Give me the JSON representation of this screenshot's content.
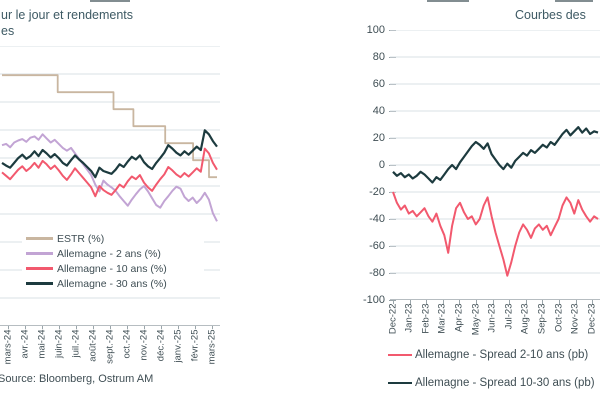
{
  "colors": {
    "tan": "#c9b6a0",
    "purple": "#c2a4d4",
    "pink": "#f2596e",
    "teal": "#1d3b3f",
    "title_text": "#3e5a64",
    "axis_text": "#3f4e54",
    "grid": "#dae0e4",
    "axis_line": "#b6bdc1"
  },
  "chart_data": [
    {
      "type": "line",
      "panel": "left",
      "title_lines": [
        "ur le jour et rendements",
        "es"
      ],
      "source": "Source: Bloomberg, Ostrum AM",
      "x_labels": [
        "mars-24",
        "avr.-24",
        "mai-24",
        "juin-24",
        "juil.-24",
        "août-24",
        "sept.-24",
        "oct.-24",
        "nov.-24",
        "déc.-24",
        "janv.-25",
        "févr.-25",
        "mars-25"
      ],
      "ylim": [
        0.22,
        4.34
      ],
      "grid_count": 11,
      "legend_position": "inside-lower-left",
      "series": [
        {
          "name": "ESTR  (%)",
          "color": "#c9b6a0",
          "step": true,
          "width": 1.8,
          "values": [
            3.91,
            3.91,
            3.91,
            3.91,
            3.91,
            3.91,
            3.91,
            3.91,
            3.91,
            3.91,
            3.91,
            3.91,
            3.91,
            3.91,
            3.66,
            3.66,
            3.66,
            3.66,
            3.66,
            3.66,
            3.66,
            3.66,
            3.66,
            3.66,
            3.66,
            3.66,
            3.66,
            3.66,
            3.41,
            3.41,
            3.41,
            3.41,
            3.41,
            3.16,
            3.16,
            3.16,
            3.16,
            3.16,
            3.16,
            3.16,
            3.16,
            2.91,
            2.91,
            2.91,
            2.91,
            2.91,
            2.91,
            2.91,
            2.66,
            2.66,
            2.66,
            2.66,
            2.41,
            2.41,
            2.41
          ]
        },
        {
          "name": "Allemagne - 2 ans  (%)",
          "color": "#c2a4d4",
          "width": 2,
          "values": [
            2.88,
            2.9,
            2.85,
            2.92,
            2.95,
            2.97,
            2.93,
            2.99,
            3.01,
            2.96,
            3.04,
            2.98,
            2.92,
            2.96,
            2.9,
            2.84,
            2.8,
            2.84,
            2.76,
            2.68,
            2.6,
            2.52,
            2.44,
            2.3,
            2.2,
            2.36,
            2.3,
            2.26,
            2.21,
            2.13,
            2.06,
            1.99,
            2.08,
            2.16,
            2.23,
            2.28,
            2.2,
            2.1,
            2.0,
            1.96,
            2.06,
            2.13,
            2.21,
            2.27,
            2.24,
            2.12,
            2.06,
            2.11,
            2.03,
            2.09,
            2.18,
            2.08,
            1.88,
            1.76
          ]
        },
        {
          "name": "Allemagne - 10 ans  (%)",
          "color": "#f2596e",
          "width": 2,
          "values": [
            2.48,
            2.43,
            2.38,
            2.45,
            2.52,
            2.57,
            2.5,
            2.55,
            2.62,
            2.55,
            2.65,
            2.6,
            2.53,
            2.58,
            2.51,
            2.43,
            2.37,
            2.45,
            2.54,
            2.47,
            2.4,
            2.33,
            2.26,
            2.13,
            2.28,
            2.22,
            2.18,
            2.15,
            2.22,
            2.3,
            2.26,
            2.35,
            2.42,
            2.38,
            2.44,
            2.33,
            2.26,
            2.21,
            2.3,
            2.38,
            2.45,
            2.56,
            2.51,
            2.45,
            2.41,
            2.47,
            2.42,
            2.48,
            2.54,
            2.49,
            2.83,
            2.76,
            2.62,
            2.52
          ]
        },
        {
          "name": "Allemagne - 30 ans  (%)",
          "color": "#1d3b3f",
          "width": 2.2,
          "values": [
            2.62,
            2.58,
            2.55,
            2.62,
            2.69,
            2.74,
            2.68,
            2.72,
            2.79,
            2.72,
            2.81,
            2.76,
            2.7,
            2.75,
            2.69,
            2.62,
            2.58,
            2.66,
            2.73,
            2.67,
            2.62,
            2.56,
            2.5,
            2.41,
            2.55,
            2.5,
            2.48,
            2.46,
            2.52,
            2.6,
            2.56,
            2.64,
            2.71,
            2.67,
            2.73,
            2.63,
            2.57,
            2.53,
            2.62,
            2.69,
            2.77,
            2.88,
            2.83,
            2.77,
            2.73,
            2.79,
            2.74,
            2.8,
            2.86,
            2.81,
            3.1,
            3.04,
            2.94,
            2.86
          ]
        }
      ]
    },
    {
      "type": "line",
      "panel": "right",
      "title": "Courbes des",
      "x_labels": [
        "Dec-22",
        "Jan-23",
        "Feb-23",
        "Mar-23",
        "Apr-23",
        "May-23",
        "Jun-23",
        "Jul-23",
        "Aug-23",
        "Sep-23",
        "Oct-23",
        "Nov-23",
        "Dec-23"
      ],
      "ylim": [
        -100,
        100
      ],
      "y_ticks": [
        100,
        80,
        60,
        40,
        20,
        0,
        -20,
        -40,
        -60,
        -80,
        -100
      ],
      "grid_count": 11,
      "legend_position": "below",
      "series": [
        {
          "name": "Allemagne - Spread 2-10 ans  (pb)",
          "color": "#f2596e",
          "width": 2,
          "values": [
            -20,
            -28,
            -33,
            -30,
            -36,
            -34,
            -38,
            -35,
            -32,
            -38,
            -42,
            -36,
            -45,
            -52,
            -65,
            -45,
            -32,
            -28,
            -35,
            -40,
            -38,
            -44,
            -40,
            -30,
            -24,
            -38,
            -50,
            -60,
            -70,
            -82,
            -72,
            -60,
            -50,
            -44,
            -48,
            -54,
            -47,
            -44,
            -48,
            -45,
            -52,
            -46,
            -40,
            -30,
            -24,
            -28,
            -36,
            -26,
            -33,
            -38,
            -42,
            -38,
            -40
          ]
        },
        {
          "name": "Allemagne - Spread 10-30 ans  (pb)",
          "color": "#1d3b3f",
          "width": 2.2,
          "values": [
            -5,
            -8,
            -6,
            -9,
            -7,
            -10,
            -8,
            -5,
            -7,
            -10,
            -13,
            -9,
            -11,
            -7,
            -3,
            0,
            -3,
            2,
            6,
            10,
            14,
            17,
            15,
            12,
            16,
            8,
            4,
            0,
            -3,
            1,
            -2,
            3,
            6,
            9,
            7,
            11,
            9,
            12,
            15,
            13,
            17,
            15,
            19,
            23,
            26,
            22,
            25,
            28,
            24,
            27,
            23,
            25,
            24
          ]
        }
      ]
    }
  ]
}
